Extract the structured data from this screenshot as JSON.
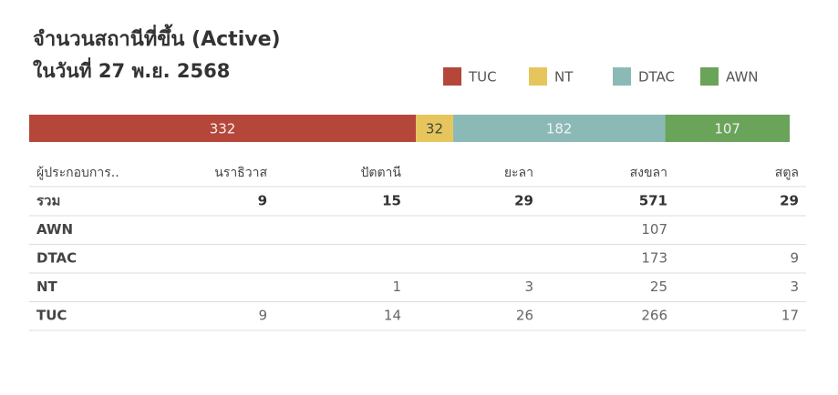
{
  "chart_data": {
    "type": "bar",
    "title": "จำนวนสถานีที่ขึ้น (Active)",
    "subtitle": "ในวันที่ 27 พ.ย. 2568",
    "categories": [
      null
    ],
    "series": [
      {
        "name": "TUC",
        "color": "#b5473a",
        "values": [
          332
        ]
      },
      {
        "name": "NT",
        "color": "#e6c65c",
        "values": [
          32
        ]
      },
      {
        "name": "DTAC",
        "color": "#8bbab6",
        "values": [
          182
        ]
      },
      {
        "name": "AWN",
        "color": "#6aa35a",
        "values": [
          107
        ]
      }
    ]
  },
  "table": {
    "header": [
      "ผู้ประกอบการ..",
      "นราธิวาส",
      "ปัตตานี",
      "ยะลา",
      "สงขลา",
      "สตูล"
    ],
    "rows": [
      [
        "รวม",
        9,
        15,
        29,
        571,
        29
      ],
      [
        "AWN",
        null,
        null,
        null,
        107,
        null
      ],
      [
        "DTAC",
        null,
        null,
        null,
        173,
        9
      ],
      [
        "NT",
        null,
        1,
        3,
        25,
        3
      ],
      [
        "TUC",
        9,
        14,
        26,
        266,
        17
      ]
    ]
  }
}
